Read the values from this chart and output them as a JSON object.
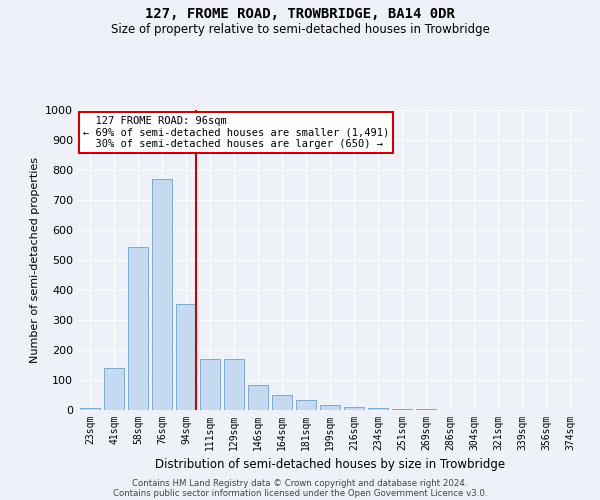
{
  "title": "127, FROME ROAD, TROWBRIDGE, BA14 0DR",
  "subtitle": "Size of property relative to semi-detached houses in Trowbridge",
  "xlabel": "Distribution of semi-detached houses by size in Trowbridge",
  "ylabel": "Number of semi-detached properties",
  "categories": [
    "23sqm",
    "41sqm",
    "58sqm",
    "76sqm",
    "94sqm",
    "111sqm",
    "129sqm",
    "146sqm",
    "164sqm",
    "181sqm",
    "199sqm",
    "216sqm",
    "234sqm",
    "251sqm",
    "269sqm",
    "286sqm",
    "304sqm",
    "321sqm",
    "339sqm",
    "356sqm",
    "374sqm"
  ],
  "values": [
    8,
    140,
    545,
    770,
    352,
    170,
    170,
    82,
    50,
    33,
    18,
    10,
    7,
    3,
    2,
    1,
    0,
    0,
    0,
    0,
    0
  ],
  "bar_color": "#c5d9f0",
  "bar_edge_color": "#7aaad4",
  "property_line_index": 4,
  "property_size": "96sqm",
  "property_name": "127 FROME ROAD",
  "pct_smaller": 69,
  "n_smaller": 1491,
  "pct_larger": 30,
  "n_larger": 650,
  "annotation_box_color": "#ffffff",
  "annotation_box_edge": "#cc0000",
  "line_color": "#cc0000",
  "ylim": [
    0,
    1000
  ],
  "yticks": [
    0,
    100,
    200,
    300,
    400,
    500,
    600,
    700,
    800,
    900,
    1000
  ],
  "bg_color": "#eef2f8",
  "grid_color": "#ffffff",
  "footer1": "Contains HM Land Registry data © Crown copyright and database right 2024.",
  "footer2": "Contains public sector information licensed under the Open Government Licence v3.0."
}
